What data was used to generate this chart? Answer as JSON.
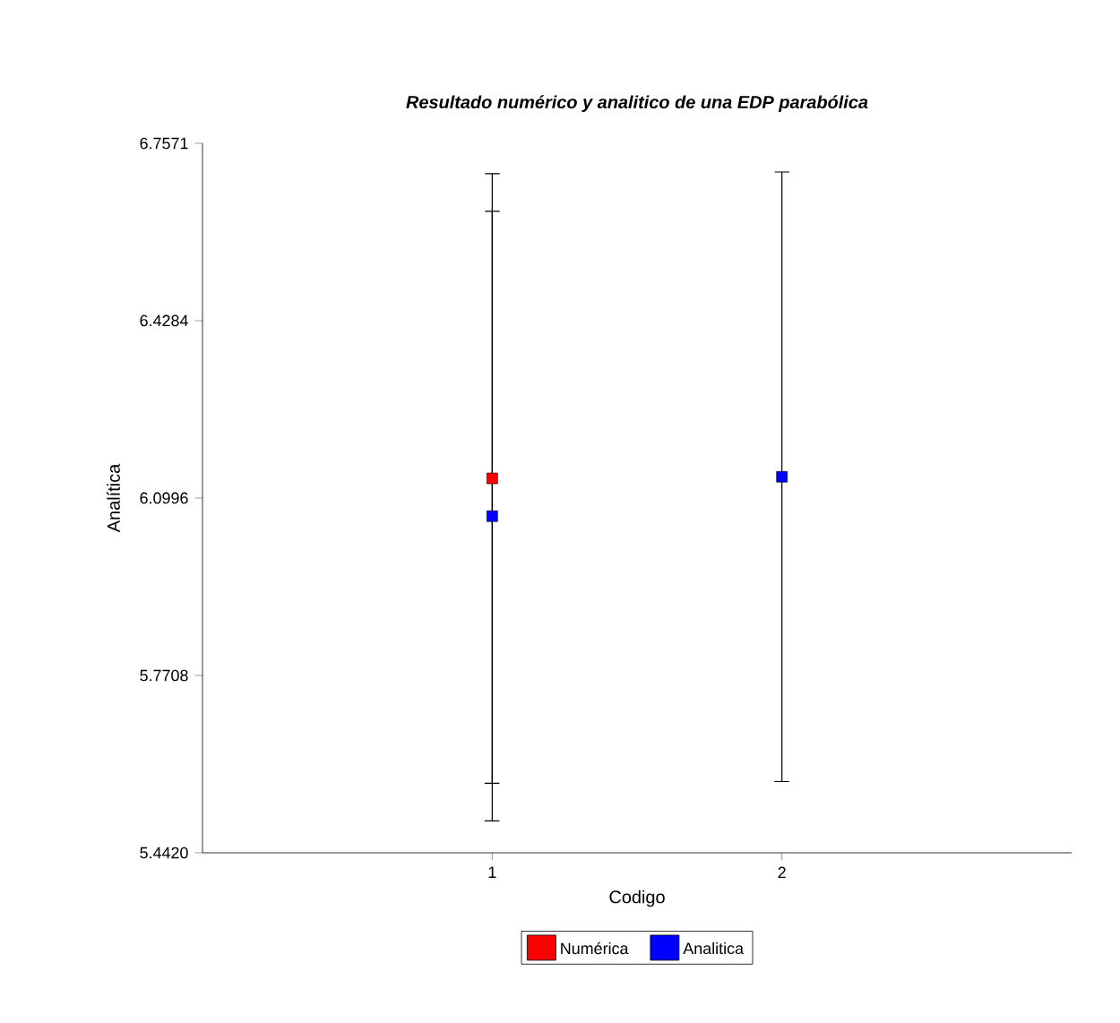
{
  "chart_data": {
    "type": "scatter",
    "title": "Resultado numérico y analitico de una EDP parabólica",
    "xlabel": "Codigo",
    "ylabel": "Analítica",
    "x": [
      1,
      2
    ],
    "series": [
      {
        "name": "Numérica",
        "color": "#ff0000",
        "values": [
          6.136,
          null
        ],
        "errors": [
          0.565,
          null
        ]
      },
      {
        "name": "Analitica",
        "color": "#0000ff",
        "values": [
          6.066,
          6.139
        ],
        "errors": [
          0.565,
          0.565
        ]
      }
    ],
    "xlim": [
      0,
      3
    ],
    "xticks": [
      1,
      2
    ],
    "ylim": [
      5.442,
      6.7571
    ],
    "yticks": [
      {
        "value": 5.442,
        "label": "5.4420"
      },
      5.7708,
      6.0996,
      6.4284,
      6.7571
    ],
    "marker": "square",
    "legend": "bottom"
  }
}
